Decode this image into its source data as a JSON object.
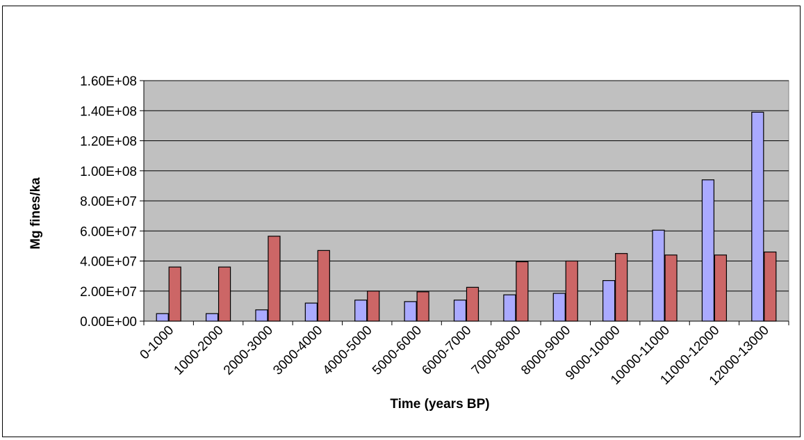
{
  "chart_data": {
    "type": "bar",
    "title": "",
    "xlabel": "Time (years BP)",
    "ylabel": "Mg fines/ka",
    "ylim": [
      0,
      160000000
    ],
    "y_ticks": [
      0,
      20000000,
      40000000,
      60000000,
      80000000,
      100000000,
      120000000,
      140000000,
      160000000
    ],
    "y_tick_labels": [
      "0.00E+00",
      "2.00E+07",
      "4.00E+07",
      "6.00E+07",
      "8.00E+07",
      "1.00E+08",
      "1.20E+08",
      "1.40E+08",
      "1.60E+08"
    ],
    "categories": [
      "0-1000",
      "1000-2000",
      "2000-3000",
      "3000-4000",
      "4000-5000",
      "5000-6000",
      "6000-7000",
      "7000-8000",
      "8000-9000",
      "9000-10000",
      "10000-11000",
      "11000-12000",
      "12000-13000"
    ],
    "series": [
      {
        "color": "#aaaaff",
        "values": [
          5000000,
          5000000,
          7500000,
          12000000,
          14000000,
          13000000,
          14000000,
          17500000,
          18500000,
          27000000,
          60500000,
          94000000,
          139000000
        ]
      },
      {
        "color": "#cc6666",
        "values": [
          36000000,
          36000000,
          56500000,
          47000000,
          20000000,
          19500000,
          22500000,
          39500000,
          40000000,
          45000000,
          44000000,
          44000000,
          46000000
        ]
      }
    ],
    "grid": true,
    "plot_background": "#c0c0c0",
    "legend": "none"
  }
}
